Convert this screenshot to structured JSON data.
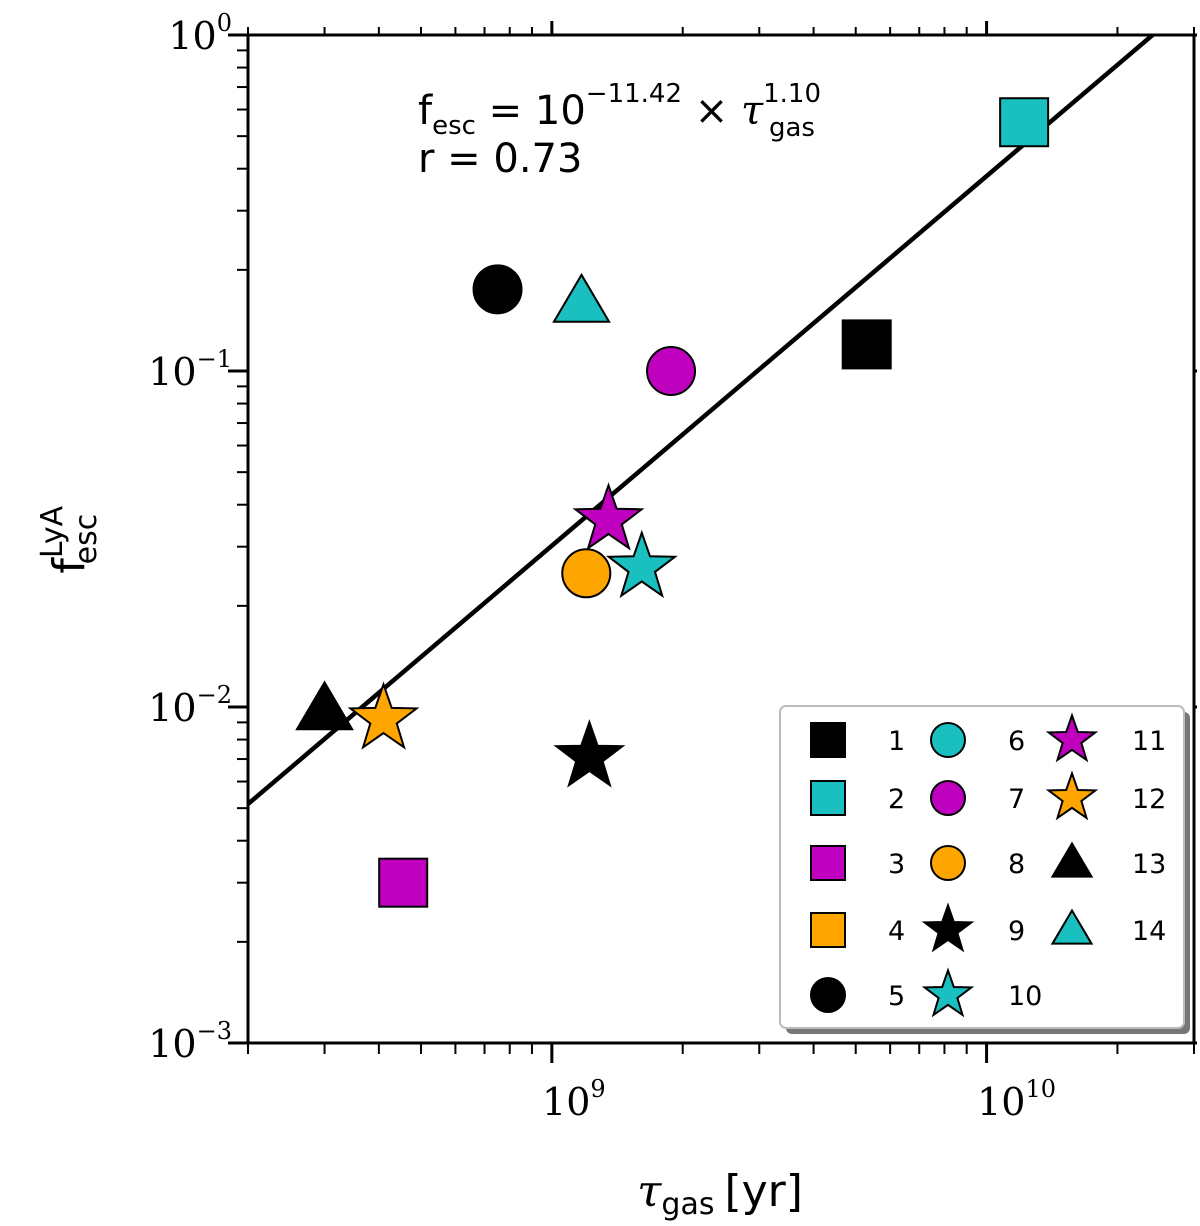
{
  "chart_data": {
    "type": "scatter",
    "x_scale": "log",
    "y_scale": "log",
    "xlim": [
      200000000,
      30000000000
    ],
    "ylim": [
      0.001,
      1
    ],
    "x_ticks": [
      {
        "value": 1000000000,
        "base": "10",
        "exp": "9"
      },
      {
        "value": 10000000000,
        "base": "10",
        "exp": "10"
      }
    ],
    "y_ticks": [
      {
        "value": 0.001,
        "base": "10",
        "exp": "−3"
      },
      {
        "value": 0.01,
        "base": "10",
        "exp": "−2"
      },
      {
        "value": 0.1,
        "base": "10",
        "exp": "−1"
      },
      {
        "value": 1,
        "base": "10",
        "exp": "0"
      }
    ],
    "xlabel": {
      "symbol": "τ",
      "sub": "gas",
      "unit": "[yr]"
    },
    "ylabel": {
      "main": "f",
      "sup": "LyA",
      "sub": "esc"
    },
    "annotation": {
      "line1_f": "f",
      "line1_sub": "esc",
      "line1_eq": " = 10",
      "line1_exp": "−11.42",
      "line1_times": " × ",
      "line1_tau": "τ",
      "line1_tau_sub": "gas",
      "line1_tau_exp": "1.10",
      "line2": "r = 0.73"
    },
    "fit": {
      "log_coeff": -11.42,
      "exponent": 1.1,
      "color": "#000000"
    },
    "legend_position": "bottom-right",
    "points": [
      {
        "label": "1",
        "marker": "square",
        "color": "#000000",
        "x": 5300000000,
        "y": 0.12
      },
      {
        "label": "2",
        "marker": "square",
        "color": "#1ABFBF",
        "x": 12200000000,
        "y": 0.55
      },
      {
        "label": "3",
        "marker": "square",
        "color": "#BF00BF",
        "x": 455000000,
        "y": 0.003
      },
      {
        "label": "4",
        "marker": "square",
        "color": "#FFA500",
        "x": null,
        "y": null
      },
      {
        "label": "5",
        "marker": "circle",
        "color": "#000000",
        "x": 750000000,
        "y": 0.175
      },
      {
        "label": "6",
        "marker": "circle",
        "color": "#1ABFBF",
        "x": null,
        "y": null
      },
      {
        "label": "7",
        "marker": "circle",
        "color": "#BF00BF",
        "x": 1880000000,
        "y": 0.1
      },
      {
        "label": "8",
        "marker": "circle",
        "color": "#FFA500",
        "x": 1200000000,
        "y": 0.025
      },
      {
        "label": "9",
        "marker": "star",
        "color": "#000000",
        "x": 1220000000,
        "y": 0.0071
      },
      {
        "label": "10",
        "marker": "star",
        "color": "#1ABFBF",
        "x": 1610000000,
        "y": 0.026
      },
      {
        "label": "11",
        "marker": "star",
        "color": "#BF00BF",
        "x": 1350000000,
        "y": 0.036
      },
      {
        "label": "12",
        "marker": "star",
        "color": "#FFA500",
        "x": 410000000,
        "y": 0.0092
      },
      {
        "label": "13",
        "marker": "triangle",
        "color": "#000000",
        "x": 300000000,
        "y": 0.0098
      },
      {
        "label": "14",
        "marker": "triangle",
        "color": "#1ABFBF",
        "x": 1170000000,
        "y": 0.16
      }
    ]
  }
}
